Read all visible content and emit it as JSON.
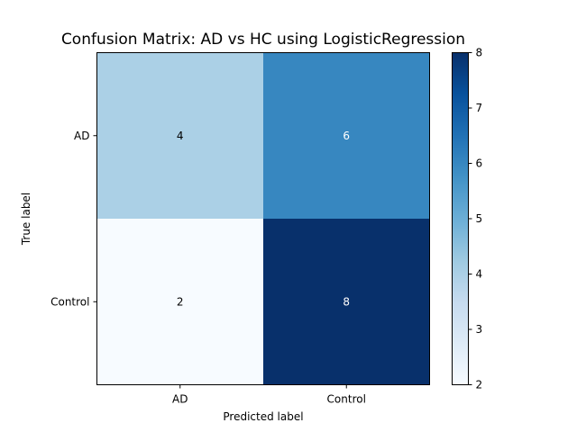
{
  "chart_data": {
    "type": "heatmap",
    "title": "Confusion Matrix: AD vs HC using LogisticRegression",
    "xlabel": "Predicted label",
    "ylabel": "True label",
    "x_categories": [
      "AD",
      "Control"
    ],
    "y_categories": [
      "AD",
      "Control"
    ],
    "values": [
      [
        4,
        6
      ],
      [
        2,
        8
      ]
    ],
    "colormap": "Blues",
    "colorbar": {
      "min": 2,
      "max": 8,
      "ticks": [
        2,
        3,
        4,
        5,
        6,
        7,
        8
      ]
    },
    "text_color_dark": "#000000",
    "text_color_light": "#ffffff"
  }
}
